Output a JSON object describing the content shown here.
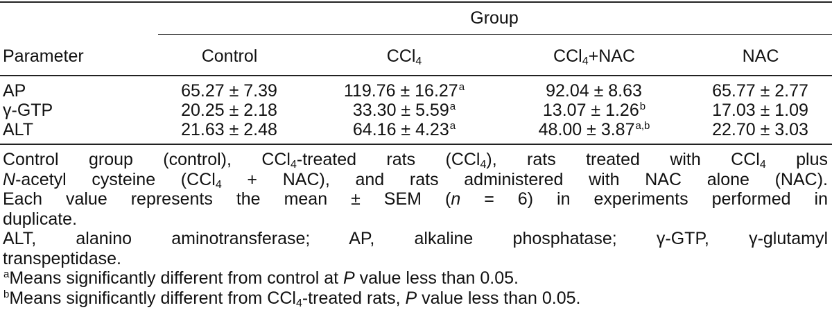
{
  "table": {
    "group_header": "Group",
    "parameter_header": "Parameter",
    "columns": [
      {
        "label": "Control",
        "sub": "",
        "suffix": ""
      },
      {
        "label": "CCl",
        "sub": "4",
        "suffix": ""
      },
      {
        "label": "CCl",
        "sub": "4",
        "suffix": "+NAC"
      },
      {
        "label": "NAC",
        "sub": "",
        "suffix": ""
      }
    ],
    "rows": [
      {
        "parameter": "AP",
        "cells": [
          {
            "value": "65.27 ± 7.39",
            "sup": ""
          },
          {
            "value": "119.76 ± 16.27",
            "sup": "a"
          },
          {
            "value": "92.04 ± 8.63",
            "sup": ""
          },
          {
            "value": "65.77 ± 2.77",
            "sup": ""
          }
        ]
      },
      {
        "parameter": "γ-GTP",
        "cells": [
          {
            "value": "20.25 ± 2.18",
            "sup": ""
          },
          {
            "value": "33.30 ± 5.59",
            "sup": "a"
          },
          {
            "value": "13.07 ± 1.26",
            "sup": "b"
          },
          {
            "value": "17.03 ± 1.09",
            "sup": ""
          }
        ]
      },
      {
        "parameter": "ALT",
        "cells": [
          {
            "value": "21.63 ± 2.48",
            "sup": ""
          },
          {
            "value": "64.16 ± 4.23",
            "sup": "a"
          },
          {
            "value": "48.00 ± 3.87",
            "sup": "a,b"
          },
          {
            "value": "22.70 ± 3.03",
            "sup": ""
          }
        ]
      }
    ]
  },
  "notes": {
    "n1_a": "Control group (control), CCl",
    "n1_b": "-treated rats (CCl",
    "n1_c": "), rats treated with CCl",
    "n1_d": " plus",
    "n2_a": "N",
    "n2_b": "-acetyl cysteine (CCl",
    "n2_c": " + NAC), and rats administered with NAC alone (NAC).",
    "n3": "Each value represents the mean ± SEM (",
    "n3_n": "n",
    "n3_b": " = 6) in experiments performed in",
    "n4": "duplicate.",
    "n5": "ALT, alanino aminotransferase; AP, alkaline phosphatase; γ-GTP, γ-glutamyl",
    "n6": "transpeptidase.",
    "fa_sup": "a",
    "fa": "Means significantly different from control at ",
    "fa_p": "P",
    "fa_b": " value less than 0.05.",
    "fb_sup": "b",
    "fb": "Means significantly different from CCl",
    "fb_b": "-treated rats, ",
    "fb_p": "P",
    "fb_c": " value less than 0.05.",
    "sub4": "4"
  }
}
